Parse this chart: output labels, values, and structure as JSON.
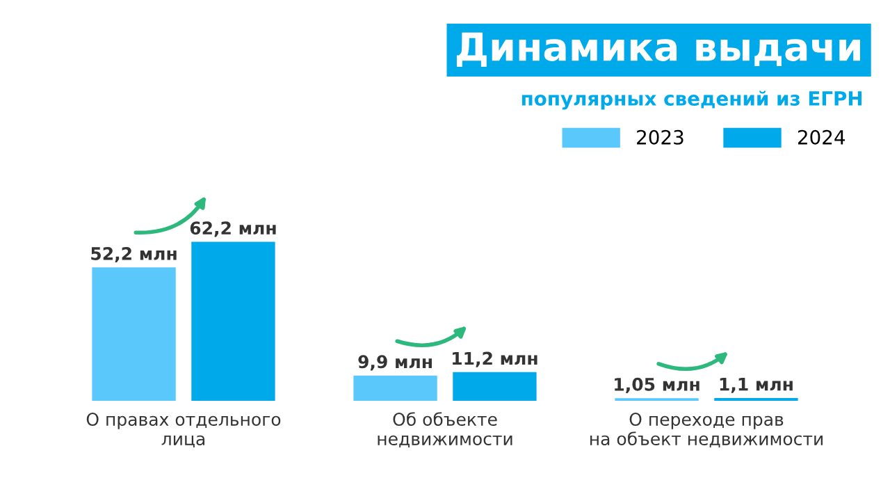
{
  "chart_data": {
    "type": "bar",
    "title": "Динамика выдачи",
    "subtitle": "популярных сведений из ЕГРН",
    "categories": [
      "О правах отдельного\nлица",
      "Об объекте\nнедвижимости",
      "О переходе прав\nна объект недвижимости"
    ],
    "series": [
      {
        "name": "2023",
        "color": "#5bc8fb",
        "values": [
          52.2,
          9.9,
          1.05
        ],
        "value_labels": [
          "52,2 млн",
          "9,9 млн",
          "1,05 млн"
        ]
      },
      {
        "name": "2024",
        "color": "#00a9ea",
        "values": [
          62.2,
          11.2,
          1.1
        ],
        "value_labels": [
          "62,2 млн",
          "11,2 млн",
          "1,1 млн"
        ]
      }
    ],
    "legend": "top right",
    "grid": false
  }
}
